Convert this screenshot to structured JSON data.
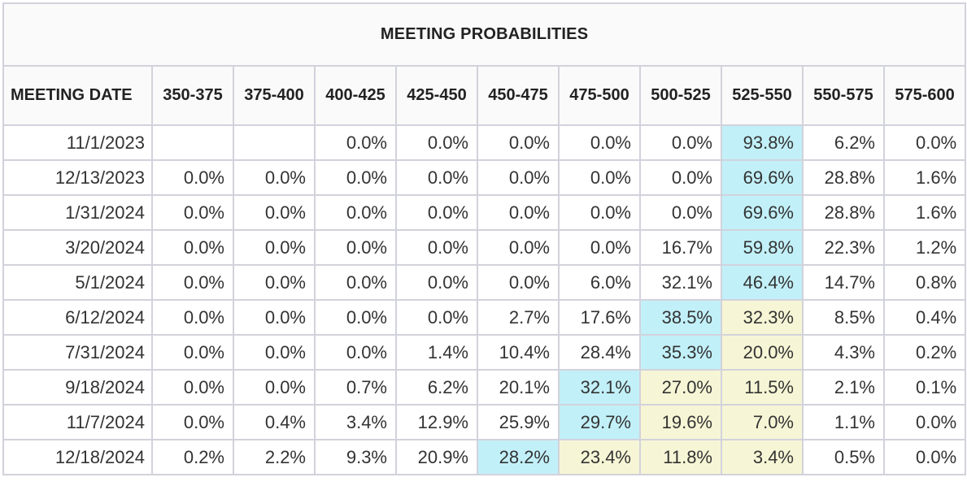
{
  "title": "MEETING PROBABILITIES",
  "columns": [
    "MEETING DATE",
    "350-375",
    "375-400",
    "400-425",
    "425-450",
    "450-475",
    "475-500",
    "500-525",
    "525-550",
    "550-575",
    "575-600"
  ],
  "highlight_colors": {
    "blue": "#c2f0f8",
    "yellow": "#f6f6d6"
  },
  "rows": [
    {
      "date": "11/1/2023",
      "values": [
        "",
        "",
        "0.0%",
        "0.0%",
        "0.0%",
        "0.0%",
        "0.0%",
        "93.8%",
        "6.2%",
        "0.0%"
      ],
      "blue": 7,
      "yellow": null
    },
    {
      "date": "12/13/2023",
      "values": [
        "0.0%",
        "0.0%",
        "0.0%",
        "0.0%",
        "0.0%",
        "0.0%",
        "0.0%",
        "69.6%",
        "28.8%",
        "1.6%"
      ],
      "blue": 7,
      "yellow": null
    },
    {
      "date": "1/31/2024",
      "values": [
        "0.0%",
        "0.0%",
        "0.0%",
        "0.0%",
        "0.0%",
        "0.0%",
        "0.0%",
        "69.6%",
        "28.8%",
        "1.6%"
      ],
      "blue": 7,
      "yellow": null
    },
    {
      "date": "3/20/2024",
      "values": [
        "0.0%",
        "0.0%",
        "0.0%",
        "0.0%",
        "0.0%",
        "0.0%",
        "16.7%",
        "59.8%",
        "22.3%",
        "1.2%"
      ],
      "blue": 7,
      "yellow": null
    },
    {
      "date": "5/1/2024",
      "values": [
        "0.0%",
        "0.0%",
        "0.0%",
        "0.0%",
        "0.0%",
        "6.0%",
        "32.1%",
        "46.4%",
        "14.7%",
        "0.8%"
      ],
      "blue": 7,
      "yellow": null
    },
    {
      "date": "6/12/2024",
      "values": [
        "0.0%",
        "0.0%",
        "0.0%",
        "0.0%",
        "2.7%",
        "17.6%",
        "38.5%",
        "32.3%",
        "8.5%",
        "0.4%"
      ],
      "blue": 6,
      "yellow": 7
    },
    {
      "date": "7/31/2024",
      "values": [
        "0.0%",
        "0.0%",
        "0.0%",
        "1.4%",
        "10.4%",
        "28.4%",
        "35.3%",
        "20.0%",
        "4.3%",
        "0.2%"
      ],
      "blue": 6,
      "yellow": 7
    },
    {
      "date": "9/18/2024",
      "values": [
        "0.0%",
        "0.0%",
        "0.7%",
        "6.2%",
        "20.1%",
        "32.1%",
        "27.0%",
        "11.5%",
        "2.1%",
        "0.1%"
      ],
      "blue": 5,
      "yellow": [
        6,
        7
      ]
    },
    {
      "date": "11/7/2024",
      "values": [
        "0.0%",
        "0.4%",
        "3.4%",
        "12.9%",
        "25.9%",
        "29.7%",
        "19.6%",
        "7.0%",
        "1.1%",
        "0.0%"
      ],
      "blue": 5,
      "yellow": [
        6,
        7
      ]
    },
    {
      "date": "12/18/2024",
      "values": [
        "0.2%",
        "2.2%",
        "9.3%",
        "20.9%",
        "28.2%",
        "23.4%",
        "11.8%",
        "3.4%",
        "0.5%",
        "0.0%"
      ],
      "blue": 4,
      "yellow": [
        5,
        6,
        7
      ]
    }
  ]
}
